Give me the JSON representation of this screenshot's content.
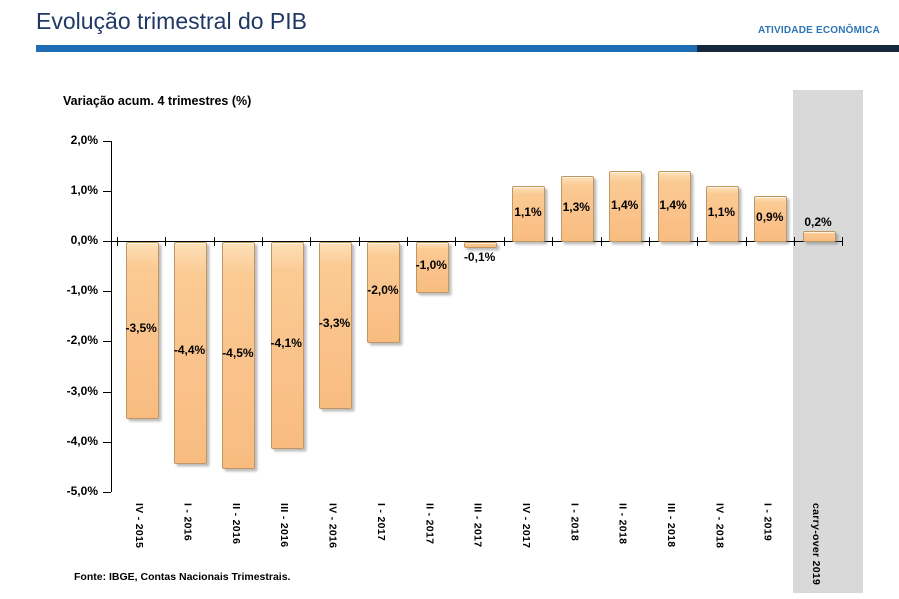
{
  "header": {
    "title": "Evolução trimestral do PIB",
    "section_label": "ATIVIDADE ECONÔMICA"
  },
  "chart": {
    "axis_title": "Variação acum. 4 trimestres (%)"
  },
  "footer": {
    "source": "Fonte: IBGE, Contas Nacionais Trimestrais."
  },
  "colors": {
    "title_blue": "#1F3864",
    "rule_light_blue": "#1E6DB5",
    "rule_dark_navy": "#14273D",
    "section_blue": "#2E75B6",
    "bar_fill": "#FAC28A",
    "bar_border": "#BE9763",
    "highlight_band_gray": "#D9D9D9"
  },
  "chart_data": {
    "type": "bar",
    "title": "Evolução trimestral do PIB",
    "ylabel": "Variação acum. 4 trimestres (%)",
    "xlabel": "",
    "categories": [
      "IV - 2015",
      "I - 2016",
      "II - 2016",
      "III - 2016",
      "IV - 2016",
      "I - 2017",
      "II - 2017",
      "III - 2017",
      "IV - 2017",
      "I - 2018",
      "II - 2018",
      "III - 2018",
      "IV - 2018",
      "I - 2019",
      "carry-over 2019"
    ],
    "values": [
      -3.5,
      -4.4,
      -4.5,
      -4.1,
      -3.3,
      -2.0,
      -1.0,
      -0.1,
      1.1,
      1.3,
      1.4,
      1.4,
      1.1,
      0.9,
      0.2
    ],
    "data_labels": [
      "-3,5%",
      "-4,4%",
      "-4,5%",
      "-4,1%",
      "-3,3%",
      "-2,0%",
      "-1,0%",
      "-0,1%",
      "1,1%",
      "1,3%",
      "1,4%",
      "1,4%",
      "1,1%",
      "0,9%",
      "0,2%"
    ],
    "yticks": [
      2,
      1,
      0,
      -1,
      -2,
      -3,
      -4,
      -5
    ],
    "ytick_labels": [
      "2,0%",
      "1,0%",
      "0,0%",
      "-1,0%",
      "-2,0%",
      "-3,0%",
      "-4,0%",
      "-5,0%"
    ],
    "ylim": [
      -5.0,
      2.0
    ],
    "grid": false,
    "legend": "none",
    "highlight_category": "carry-over 2019",
    "source": "Fonte: IBGE, Contas Nacionais Trimestrais."
  }
}
